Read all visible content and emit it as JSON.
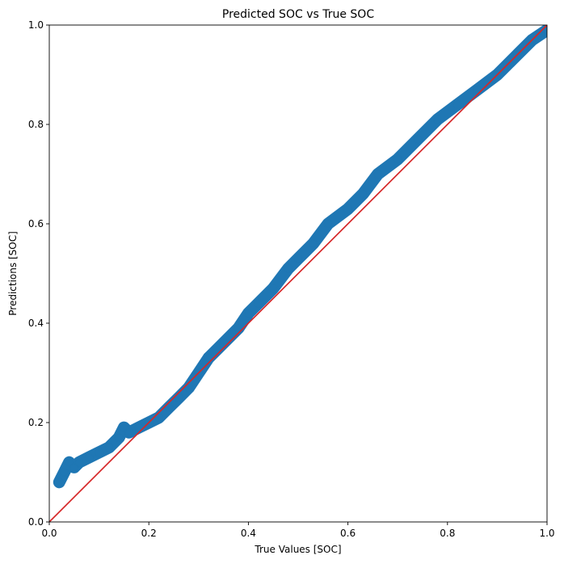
{
  "chart_data": {
    "type": "scatter",
    "title": "Predicted SOC vs True SOC",
    "xlabel": "True Values [SOC]",
    "ylabel": "Predictions [SOC]",
    "xlim": [
      0,
      1
    ],
    "ylim": [
      0,
      1
    ],
    "xticks": [
      "0.0",
      "0.2",
      "0.4",
      "0.6",
      "0.8",
      "1.0"
    ],
    "yticks": [
      "0.0",
      "0.2",
      "0.4",
      "0.6",
      "0.8",
      "1.0"
    ],
    "grid": false,
    "legend": "none",
    "series": [
      {
        "kind": "scatter",
        "color": "#1f77b4",
        "alpha": 0.5,
        "points": [
          [
            0.02,
            0.08
          ],
          [
            0.03,
            0.1
          ],
          [
            0.04,
            0.12
          ],
          [
            0.05,
            0.11
          ],
          [
            0.06,
            0.12
          ],
          [
            0.08,
            0.13
          ],
          [
            0.1,
            0.14
          ],
          [
            0.12,
            0.15
          ],
          [
            0.14,
            0.17
          ],
          [
            0.15,
            0.19
          ],
          [
            0.16,
            0.18
          ],
          [
            0.18,
            0.19
          ],
          [
            0.2,
            0.2
          ],
          [
            0.22,
            0.21
          ],
          [
            0.24,
            0.23
          ],
          [
            0.26,
            0.25
          ],
          [
            0.28,
            0.27
          ],
          [
            0.3,
            0.3
          ],
          [
            0.32,
            0.33
          ],
          [
            0.35,
            0.36
          ],
          [
            0.38,
            0.39
          ],
          [
            0.4,
            0.42
          ],
          [
            0.42,
            0.44
          ],
          [
            0.45,
            0.47
          ],
          [
            0.48,
            0.51
          ],
          [
            0.5,
            0.53
          ],
          [
            0.53,
            0.56
          ],
          [
            0.56,
            0.6
          ],
          [
            0.6,
            0.63
          ],
          [
            0.63,
            0.66
          ],
          [
            0.66,
            0.7
          ],
          [
            0.7,
            0.73
          ],
          [
            0.74,
            0.77
          ],
          [
            0.78,
            0.81
          ],
          [
            0.82,
            0.84
          ],
          [
            0.86,
            0.87
          ],
          [
            0.9,
            0.9
          ],
          [
            0.94,
            0.94
          ],
          [
            0.97,
            0.97
          ],
          [
            1.0,
            0.99
          ]
        ]
      },
      {
        "kind": "line",
        "color": "#d62728",
        "points": [
          [
            0,
            0
          ],
          [
            1,
            1
          ]
        ]
      }
    ]
  }
}
